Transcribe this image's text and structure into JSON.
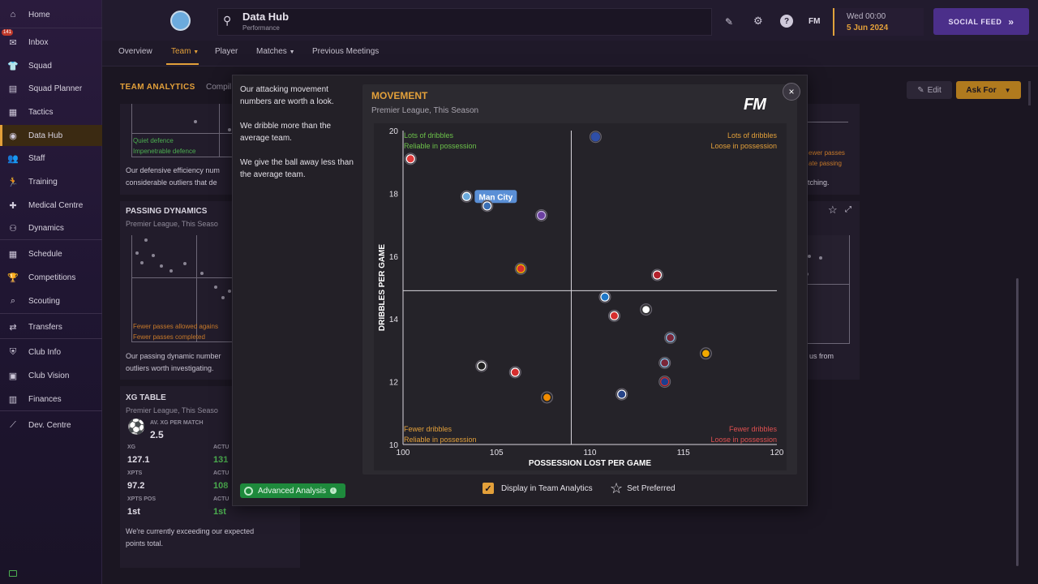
{
  "sidebar": {
    "items": [
      {
        "label": "Home",
        "icon": "home-icon",
        "glyph": "⌂"
      },
      {
        "label": "Inbox",
        "icon": "inbox-icon",
        "glyph": "✉",
        "badge": "141"
      },
      {
        "label": "Squad",
        "icon": "shirt-icon",
        "glyph": "👕"
      },
      {
        "label": "Squad Planner",
        "icon": "planner-icon",
        "glyph": "▤"
      },
      {
        "label": "Tactics",
        "icon": "tactics-icon",
        "glyph": "▦"
      },
      {
        "label": "Data Hub",
        "icon": "data-hub-icon",
        "glyph": "◉"
      },
      {
        "label": "Staff",
        "icon": "staff-icon",
        "glyph": "👥"
      },
      {
        "label": "Training",
        "icon": "training-icon",
        "glyph": "🏃"
      },
      {
        "label": "Medical Centre",
        "icon": "medical-icon",
        "glyph": "✚"
      },
      {
        "label": "Dynamics",
        "icon": "dynamics-icon",
        "glyph": "⚇"
      },
      {
        "label": "Schedule",
        "icon": "calendar-icon",
        "glyph": "▦"
      },
      {
        "label": "Competitions",
        "icon": "trophy-icon",
        "glyph": "🏆"
      },
      {
        "label": "Scouting",
        "icon": "scouting-icon",
        "glyph": "⌕"
      },
      {
        "label": "Transfers",
        "icon": "transfers-icon",
        "glyph": "⇄"
      },
      {
        "label": "Club Info",
        "icon": "shield-icon",
        "glyph": "⛨"
      },
      {
        "label": "Club Vision",
        "icon": "vision-icon",
        "glyph": "▣"
      },
      {
        "label": "Finances",
        "icon": "finances-icon",
        "glyph": "▥"
      },
      {
        "label": "Dev. Centre",
        "icon": "dev-centre-icon",
        "glyph": "⟋"
      }
    ]
  },
  "header": {
    "title": "Data Hub",
    "subtitle": "Performance",
    "date_line1": "Wed 00:00",
    "date_line2": "5 Jun 2024",
    "fm_label": "FM",
    "help_label": "?",
    "social_feed": "SOCIAL FEED",
    "social_arrow": "»"
  },
  "tabs": [
    {
      "label": "Overview"
    },
    {
      "label": "Team",
      "active": true,
      "caret": true
    },
    {
      "label": "Player"
    },
    {
      "label": "Matches",
      "caret": true
    },
    {
      "label": "Previous Meetings"
    }
  ],
  "main": {
    "section_title": "TEAM ANALYTICS",
    "section_sub": "Compil",
    "edit_label": "Edit",
    "ask_for_label": "Ask For",
    "def_card": {
      "label1": "Quiet defence",
      "label2": "Impenetrable defence",
      "text1": "Our defensive efficiency num",
      "text2": "considerable outliers that de"
    },
    "passing_card": {
      "title": "PASSING DYNAMICS",
      "sub": "Premier League, This Seaso",
      "label1": "Fewer passes allowed agains",
      "label2": "Fewer passes completed",
      "text1": "Our passing dynamic number",
      "text2": "outliers worth investigating."
    },
    "right_card": {
      "label1": "ewer passes",
      "label2": "ate passing",
      "text1": "tching.",
      "text2": "us from"
    },
    "xg_card": {
      "title": "XG TABLE",
      "sub": "Premier League, This Seaso",
      "av_label": "AV. XG PER MATCH",
      "av_value": "2.5",
      "xg_label": "XG",
      "xg_value": "127.1",
      "actual1_label": "ACTU",
      "actual1_value": "131",
      "xpts_label": "XPTS",
      "xpts_value": "97.2",
      "actual2_label": "ACTU",
      "actual2_value": "108",
      "xpts_pos_label": "XPTS POS",
      "xpts_pos_value": "1st",
      "actual3_label": "ACTU",
      "actual3_value": "1st",
      "footer1": "We're currently exceeding our expected",
      "footer2": "points total."
    }
  },
  "modal": {
    "insights": [
      "Our attacking movement numbers are worth a look.",
      "We dribble more than the average team.",
      "We give the ball away less than the average team."
    ],
    "advanced_analysis": "Advanced Analysis",
    "display_in_team_analytics": "Display in Team Analytics",
    "set_preferred": "Set Preferred",
    "fm_logo": "FM",
    "close_label": "×"
  },
  "chart_data": {
    "type": "scatter",
    "title": "MOVEMENT",
    "subtitle": "Premier League, This Season",
    "xlabel": "POSSESSION LOST PER GAME",
    "ylabel": "DRIBBLES PER GAME",
    "xlim": [
      100,
      120
    ],
    "ylim": [
      10,
      20
    ],
    "xticks": [
      100,
      105,
      110,
      115,
      120
    ],
    "yticks": [
      10,
      12,
      14,
      16,
      18,
      20
    ],
    "x_mean": 109,
    "y_mean": 14.9,
    "quadrants": {
      "top_left": [
        "Lots of dribbles",
        "Reliable in possession"
      ],
      "top_right": [
        "Lots of dribbles",
        "Loose in possession"
      ],
      "bottom_left": [
        "Fewer dribbles",
        "Reliable in possession"
      ],
      "bottom_right": [
        "Fewer dribbles",
        "Loose in possession"
      ]
    },
    "highlight_label": "Man City",
    "points": [
      {
        "x": 100.4,
        "y": 19.1,
        "color": "#e03a3a",
        "ring": "#ffffff"
      },
      {
        "x": 103.4,
        "y": 17.9,
        "color": "#6cabdd",
        "ring": "#ffffff",
        "highlight": true
      },
      {
        "x": 104.5,
        "y": 17.6,
        "color": "#3a6fb5",
        "ring": "#ffffff"
      },
      {
        "x": 107.4,
        "y": 17.3,
        "color": "#6b3fa0",
        "ring": "#c9b6e6"
      },
      {
        "x": 106.3,
        "y": 15.6,
        "color": "#d62e2e",
        "ring": "#f2c200"
      },
      {
        "x": 110.3,
        "y": 19.8,
        "color": "#2f4fa8",
        "ring": "#2f4fa8"
      },
      {
        "x": 113.6,
        "y": 15.4,
        "color": "#b3212b",
        "ring": "#ffffff"
      },
      {
        "x": 110.8,
        "y": 14.7,
        "color": "#1f78c8",
        "ring": "#ffffff"
      },
      {
        "x": 113.0,
        "y": 14.3,
        "color": "#ffffff",
        "ring": "#333333"
      },
      {
        "x": 111.3,
        "y": 14.1,
        "color": "#d62e2e",
        "ring": "#ffffff"
      },
      {
        "x": 114.3,
        "y": 13.4,
        "color": "#7a2638",
        "ring": "#8cc4e8"
      },
      {
        "x": 116.2,
        "y": 12.9,
        "color": "#f2a900",
        "ring": "#222222"
      },
      {
        "x": 114.0,
        "y": 12.6,
        "color": "#7a2638",
        "ring": "#8cc4e8"
      },
      {
        "x": 104.2,
        "y": 12.5,
        "color": "#222222",
        "ring": "#ffffff"
      },
      {
        "x": 106.0,
        "y": 12.3,
        "color": "#d62e2e",
        "ring": "#ffffff"
      },
      {
        "x": 114.0,
        "y": 12.0,
        "color": "#1b3f8f",
        "ring": "#d62e2e"
      },
      {
        "x": 111.7,
        "y": 11.6,
        "color": "#274488",
        "ring": "#ffffff"
      },
      {
        "x": 107.7,
        "y": 11.5,
        "color": "#f28c00",
        "ring": "#222222"
      }
    ]
  }
}
